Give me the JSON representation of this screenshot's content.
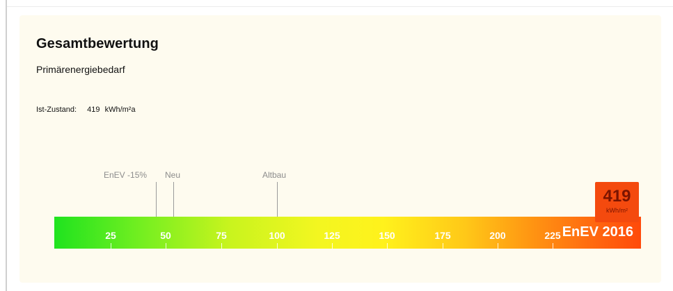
{
  "card": {
    "title": "Gesamtbewertung",
    "subtitle": "Primärenergiebedarf",
    "status_label": "Ist-Zustand:",
    "status_value": "419",
    "status_unit": "kWh/m²a"
  },
  "scale": {
    "min": 0,
    "max": 265,
    "ticks": [
      25,
      50,
      75,
      100,
      125,
      150,
      175,
      200,
      225
    ],
    "tick_labels": [
      "25",
      "50",
      "75",
      "100",
      "125",
      "150",
      "175",
      "200",
      "225"
    ],
    "colors": {
      "start": "#1fe31f",
      "mid": "#fff21c",
      "end": "#ff4a0a"
    },
    "reference_label": "EnEV 2016"
  },
  "markers": [
    {
      "label": "EnEV  -15%",
      "value": 46
    },
    {
      "label": "Neu",
      "value": 54
    },
    {
      "label": "Altbau",
      "value": 100
    }
  ],
  "current_value": {
    "number": "419",
    "unit": "kWh/m²",
    "color": "#f44a0e"
  }
}
